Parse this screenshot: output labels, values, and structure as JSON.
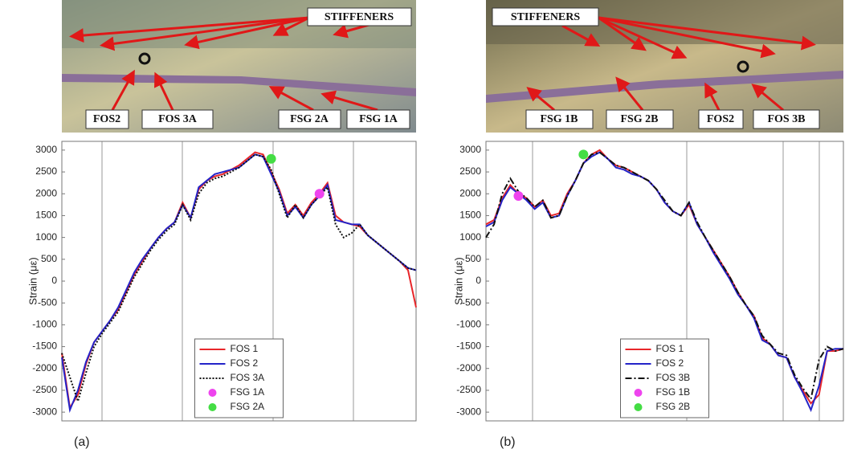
{
  "chart_data": [
    {
      "type": "line",
      "panel_label": "(a)",
      "ylabel": "Strain (με)",
      "photo_labels": [
        "STIFFENERS",
        "FOS2",
        "FOS 3A",
        "FSG 2A",
        "FSG 1A"
      ],
      "categories": [
        null,
        null,
        null,
        null,
        null,
        null,
        null,
        null,
        null,
        null,
        null,
        null,
        null,
        null,
        null,
        null,
        null,
        null,
        null,
        null,
        null,
        null,
        null,
        null,
        null,
        null,
        null,
        null,
        null,
        null,
        null,
        null,
        null,
        null,
        null,
        null,
        null,
        null,
        null,
        null,
        null,
        null,
        null,
        null,
        null
      ],
      "ylim": [
        -3200,
        3200
      ],
      "yticks": [
        -3000,
        -2500,
        -2000,
        -1500,
        -1000,
        -500,
        0,
        500,
        1000,
        1500,
        2000,
        2500,
        3000
      ],
      "legend": "lower center",
      "series": [
        {
          "name": "FOS 1",
          "color": "#e8262a",
          "style": "solid",
          "values": [
            -1650,
            -2900,
            -2600,
            -1900,
            -1400,
            -1150,
            -900,
            -650,
            -250,
            150,
            450,
            750,
            1000,
            1200,
            1350,
            1800,
            1450,
            2100,
            2300,
            2400,
            2450,
            2550,
            2650,
            2800,
            2950,
            2900,
            2500,
            2100,
            1550,
            1750,
            1500,
            1800,
            2000,
            2250,
            1500,
            1350,
            1300,
            1250,
            1050,
            900,
            750,
            600,
            450,
            250,
            -600
          ]
        },
        {
          "name": "FOS 2",
          "color": "#2424c8",
          "style": "solid",
          "values": [
            -1750,
            -2950,
            -2500,
            -1850,
            -1400,
            -1150,
            -900,
            -600,
            -200,
            200,
            500,
            750,
            1000,
            1200,
            1350,
            1750,
            1450,
            2150,
            2300,
            2450,
            2500,
            2550,
            2600,
            2750,
            2900,
            2850,
            2450,
            2050,
            1500,
            1700,
            1450,
            1750,
            1950,
            2200,
            1400,
            1350,
            1300,
            1300,
            1050,
            900,
            750,
            600,
            450,
            300,
            250
          ]
        },
        {
          "name": "FOS 3A",
          "color": "#111111",
          "style": "dotted",
          "values": [
            -1650,
            -2200,
            -2750,
            -2100,
            -1500,
            -1200,
            -950,
            -700,
            -300,
            100,
            400,
            700,
            950,
            1150,
            1300,
            1750,
            1400,
            2000,
            2250,
            2350,
            2400,
            2500,
            2600,
            2750,
            2900,
            2850,
            2550,
            2000,
            1450,
            1750,
            1450,
            1750,
            1950,
            2150,
            1300,
            1000,
            1100,
            1300,
            1050,
            900,
            750,
            600,
            450,
            300,
            250
          ]
        },
        {
          "name": "FSG 1A",
          "color": "#ee44ee",
          "style": "marker",
          "values": [
            null,
            null,
            null,
            null,
            null,
            null,
            null,
            null,
            null,
            null,
            null,
            null,
            null,
            null,
            null,
            null,
            null,
            null,
            null,
            null,
            null,
            null,
            null,
            null,
            null,
            null,
            null,
            null,
            null,
            null,
            null,
            null,
            2000,
            null,
            null,
            null,
            null,
            null,
            null,
            null,
            null,
            null,
            null,
            null,
            null
          ]
        },
        {
          "name": "FSG 2A",
          "color": "#44dd44",
          "style": "marker",
          "values": [
            null,
            null,
            null,
            null,
            null,
            null,
            null,
            null,
            null,
            null,
            null,
            null,
            null,
            null,
            null,
            null,
            null,
            null,
            null,
            null,
            null,
            null,
            null,
            null,
            null,
            null,
            2800,
            null,
            null,
            null,
            null,
            null,
            null,
            null,
            null,
            null,
            null,
            null,
            null,
            null,
            null,
            null,
            null,
            null,
            null
          ]
        }
      ]
    },
    {
      "type": "line",
      "panel_label": "(b)",
      "ylabel": "Strain (με)",
      "photo_labels": [
        "STIFFENERS",
        "FSG 1B",
        "FSG 2B",
        "FOS2",
        "FOS 3B"
      ],
      "categories": [
        null,
        null,
        null,
        null,
        null,
        null,
        null,
        null,
        null,
        null,
        null,
        null,
        null,
        null,
        null,
        null,
        null,
        null,
        null,
        null,
        null,
        null,
        null,
        null,
        null,
        null,
        null,
        null,
        null,
        null,
        null,
        null,
        null,
        null,
        null,
        null,
        null,
        null,
        null,
        null,
        null,
        null,
        null,
        null,
        null
      ],
      "ylim": [
        -3200,
        3200
      ],
      "yticks": [
        -3000,
        -2500,
        -2000,
        -1500,
        -1000,
        -500,
        0,
        500,
        1000,
        1500,
        2000,
        2500,
        3000
      ],
      "legend": "lower center",
      "series": [
        {
          "name": "FOS 1",
          "color": "#e8262a",
          "style": "solid",
          "values": [
            1300,
            1400,
            1900,
            2200,
            2000,
            1900,
            1700,
            1850,
            1500,
            1550,
            2000,
            2300,
            2700,
            2900,
            3000,
            2800,
            2650,
            2600,
            2500,
            2400,
            2300,
            2100,
            1800,
            1600,
            1500,
            1750,
            1300,
            1000,
            700,
            400,
            100,
            -250,
            -550,
            -800,
            -1300,
            -1450,
            -1700,
            -1750,
            -2200,
            -2500,
            -2800,
            -2600,
            -1600,
            -1600,
            -1550
          ]
        },
        {
          "name": "FOS 2",
          "color": "#2424c8",
          "style": "solid",
          "values": [
            1250,
            1350,
            1850,
            2150,
            2000,
            1850,
            1650,
            1800,
            1450,
            1500,
            1950,
            2300,
            2700,
            2850,
            2950,
            2800,
            2600,
            2550,
            2450,
            2400,
            2300,
            2100,
            1800,
            1600,
            1500,
            1800,
            1300,
            1000,
            650,
            350,
            50,
            -300,
            -550,
            -850,
            -1350,
            -1450,
            -1700,
            -1750,
            -2200,
            -2550,
            -2950,
            -2400,
            -1600,
            -1550,
            -1550
          ]
        },
        {
          "name": "FOS 3B",
          "color": "#111111",
          "style": "dashdot",
          "values": [
            1000,
            1300,
            2000,
            2350,
            2050,
            1900,
            1700,
            1850,
            1450,
            1500,
            1950,
            2300,
            2700,
            2900,
            2950,
            2800,
            2650,
            2600,
            2500,
            2400,
            2300,
            2100,
            1850,
            1600,
            1500,
            1800,
            1350,
            1000,
            700,
            400,
            100,
            -250,
            -550,
            -800,
            -1250,
            -1450,
            -1650,
            -1700,
            -2150,
            -2450,
            -2700,
            -1800,
            -1500,
            -1600,
            -1550
          ]
        },
        {
          "name": "FSG 1B",
          "color": "#ee44ee",
          "style": "marker",
          "values": [
            null,
            null,
            null,
            null,
            1950,
            null,
            null,
            null,
            null,
            null,
            null,
            null,
            null,
            null,
            null,
            null,
            null,
            null,
            null,
            null,
            null,
            null,
            null,
            null,
            null,
            null,
            null,
            null,
            null,
            null,
            null,
            null,
            null,
            null,
            null,
            null,
            null,
            null,
            null,
            null,
            null,
            null,
            null,
            null,
            null
          ]
        },
        {
          "name": "FSG 2B",
          "color": "#44dd44",
          "style": "marker",
          "values": [
            null,
            null,
            null,
            null,
            null,
            null,
            null,
            null,
            null,
            null,
            null,
            null,
            2900,
            null,
            null,
            null,
            null,
            null,
            null,
            null,
            null,
            null,
            null,
            null,
            null,
            null,
            null,
            null,
            null,
            null,
            null,
            null,
            null,
            null,
            null,
            null,
            null,
            null,
            null,
            null,
            null,
            null,
            null,
            null,
            null
          ]
        }
      ]
    }
  ]
}
